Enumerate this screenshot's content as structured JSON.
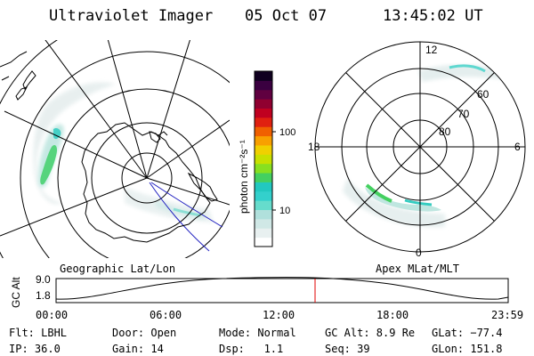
{
  "header": {
    "title": "Ultraviolet Imager",
    "date": "05 Oct 07",
    "time": "13:45:02 UT"
  },
  "left_panel": {
    "label": "Geographic Lat/Lon"
  },
  "right_panel": {
    "label": "Apex MLat/MLT",
    "mlt_labels": [
      "12",
      "18",
      "6",
      "0"
    ],
    "mlat_labels": [
      "60",
      "70",
      "80"
    ]
  },
  "colorbar": {
    "unit_label": "photon cm⁻²s⁻¹",
    "ticks": [
      "100",
      "10"
    ],
    "colors": [
      "#ffffff",
      "#e8f0f0",
      "#d0e8e6",
      "#b0e0dc",
      "#66dccc",
      "#33d0cc",
      "#22c8c0",
      "#44d060",
      "#88e020",
      "#c8e000",
      "#f0d000",
      "#f8a000",
      "#f06000",
      "#e02010",
      "#c00020",
      "#900030",
      "#600040",
      "#3a0040",
      "#100020"
    ]
  },
  "altitude_plot": {
    "ylabel": "GC Alt",
    "yticks": [
      "9.0",
      "1.8"
    ],
    "xticks": [
      "00:00",
      "06:00",
      "12:00",
      "18:00",
      "23:59"
    ],
    "current_time_hours": 13.75,
    "marker_color": "#e00000"
  },
  "info": {
    "filter": "Flt: LBHL",
    "door": "Door: Open",
    "mode": "Mode: Normal",
    "gc_alt": "GC Alt: 8.9 Re",
    "glat": "GLat: −77.4",
    "ip": "IP: 36.0",
    "gain": "Gain: 14",
    "dsp": "Dsp:   1.1",
    "seq": "Seq: 39",
    "glon": "GLon: 151.8"
  }
}
